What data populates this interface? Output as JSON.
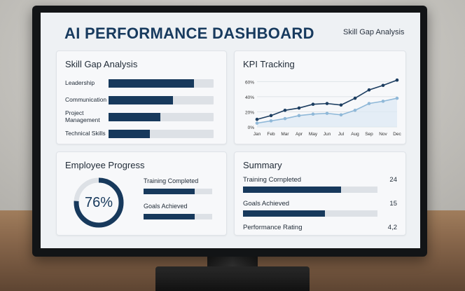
{
  "dashboard": {
    "title": "AI PERFORMANCE DASHBOARD",
    "subtitle": "Skill Gap Analysis"
  },
  "skill_gap": {
    "title": "Skill Gap Analysis",
    "items": [
      {
        "label": "Leadership",
        "level": 0.81
      },
      {
        "label": "Communication",
        "level": 0.61
      },
      {
        "label": "Project Management",
        "level": 0.49
      },
      {
        "label": "Technical Skills",
        "level": 0.39
      }
    ]
  },
  "kpi": {
    "title": "KPI Tracking",
    "chart_data": {
      "type": "line",
      "x": [
        "Jan",
        "Feb",
        "Mar",
        "Apr",
        "May",
        "Jun",
        "Jul",
        "Aug",
        "Sep",
        "Nov",
        "Dec"
      ],
      "series": [
        {
          "values": [
            10,
            15,
            22,
            25,
            30,
            31,
            29,
            38,
            49,
            55,
            62
          ],
          "color": "#1c3d60"
        },
        {
          "values": [
            5,
            8,
            11,
            15,
            17,
            18,
            16,
            22,
            31,
            34,
            38
          ],
          "color": "#8fb8d8"
        }
      ],
      "yticks": [
        "0%",
        "20%",
        "40%",
        "60%"
      ],
      "ylim": [
        0,
        65
      ],
      "grid": true
    }
  },
  "employee_progress": {
    "title": "Employee Progress",
    "percent_label": "76%",
    "percent": 0.76,
    "bars": [
      {
        "label": "Training Completed",
        "level": 0.74
      },
      {
        "label": "Goals Achieved",
        "level": 0.74
      }
    ]
  },
  "summary": {
    "title": "Summary",
    "rows": [
      {
        "label": "Training Cornpleted",
        "value": "24",
        "level": 0.73
      },
      {
        "label": "Goals Achieved",
        "value": "15",
        "level": 0.61
      },
      {
        "label": "Performance Rating",
        "value": "4,2"
      }
    ]
  },
  "colors": {
    "primary": "#17395c",
    "accent_light": "#8fb8d8",
    "track": "#dde1e6"
  }
}
